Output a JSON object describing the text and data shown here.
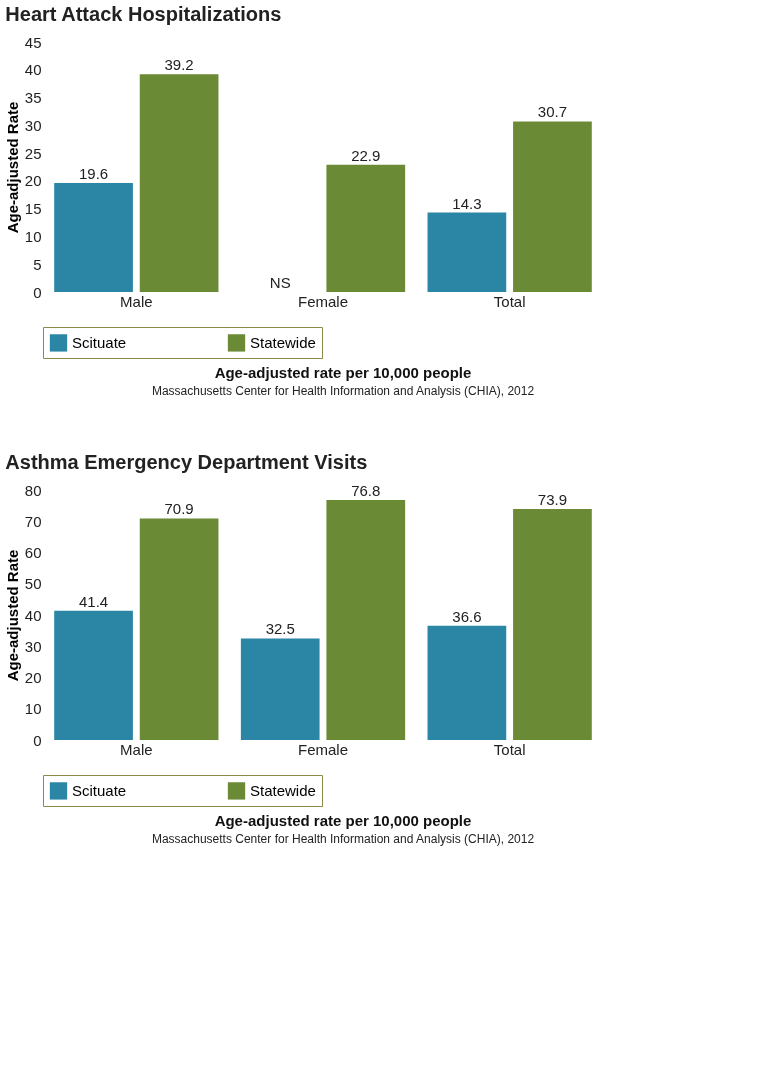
{
  "chart_data": [
    {
      "type": "bar",
      "title": "Heart Attack Hospitalizations",
      "ylabel": "Age-adjusted Rate",
      "categories": [
        "Male",
        "Female",
        "Total"
      ],
      "series": [
        {
          "name": "Scituate",
          "color": "#2b86a5",
          "values": [
            19.6,
            null,
            14.3
          ],
          "value_labels": [
            "19.6",
            "NS",
            "14.3"
          ]
        },
        {
          "name": "Statewide",
          "color": "#6a8a35",
          "values": [
            39.2,
            22.9,
            30.7
          ],
          "value_labels": [
            "39.2",
            "22.9",
            "30.7"
          ]
        }
      ],
      "ylim": [
        0,
        45
      ],
      "yticks": [
        0,
        5,
        10,
        15,
        20,
        25,
        30,
        35,
        40,
        45
      ],
      "grid": false,
      "legend": "bottom",
      "annotations": [
        "Age-adjusted rate per 10,000 people",
        "Massachusetts Center for Health Information and Analysis (CHIA), 2012"
      ]
    },
    {
      "type": "bar",
      "title": "Asthma Emergency Department Visits",
      "ylabel": "Age-adjusted Rate",
      "categories": [
        "Male",
        "Female",
        "Total"
      ],
      "series": [
        {
          "name": "Scituate",
          "color": "#2b86a5",
          "values": [
            41.4,
            32.5,
            36.6
          ]
        },
        {
          "name": "Statewide",
          "color": "#6a8a35",
          "values": [
            70.9,
            76.8,
            73.9
          ]
        }
      ],
      "ylim": [
        0,
        80
      ],
      "yticks": [
        0,
        10,
        20,
        30,
        40,
        50,
        60,
        70,
        80
      ],
      "grid": false,
      "legend": "bottom",
      "data_labels": true,
      "annotations": [
        "Age-adjusted rate per 10,000 people",
        "Massachusetts Center for Health Information and Analysis (CHIA), 2012"
      ]
    }
  ]
}
